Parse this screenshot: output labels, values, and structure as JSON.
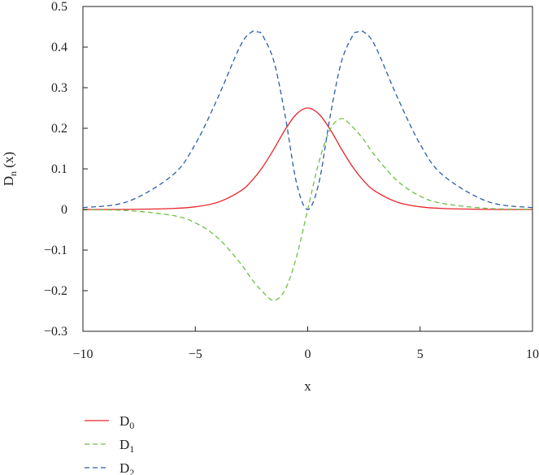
{
  "chart_data": {
    "type": "line",
    "title": "",
    "xlabel": "x",
    "ylabel": {
      "base": "D",
      "sub": "n",
      "rest": " (x)"
    },
    "xlim": [
      -10,
      10
    ],
    "ylim": [
      -0.3,
      0.5
    ],
    "xticks": [
      -10,
      -5,
      0,
      5,
      10
    ],
    "xtick_labels": [
      "−10",
      "−5",
      "0",
      "5",
      "10"
    ],
    "yticks": [
      -0.3,
      -0.2,
      -0.1,
      0,
      0.1,
      0.2,
      0.3,
      0.4,
      0.5
    ],
    "ytick_labels": [
      "−0.3",
      "−0.2",
      "−0.1",
      "0",
      "0.1",
      "0.2",
      "0.3",
      "0.4",
      "0.5"
    ],
    "grid": false,
    "legend_position": "below-left",
    "series": [
      {
        "name": "D0",
        "base": "D",
        "sub": "0",
        "color": "#e8262b",
        "dash": "solid",
        "x": [
          -10,
          -8,
          -6,
          -5,
          -4,
          -3,
          -2.5,
          -2,
          -1.5,
          -1,
          -0.5,
          0,
          0.5,
          1,
          1.5,
          2,
          2.5,
          3,
          4,
          5,
          6,
          8,
          10
        ],
        "y": [
          0.0,
          0.0003,
          0.0025,
          0.0066,
          0.0177,
          0.0452,
          0.0701,
          0.105,
          0.149,
          0.197,
          0.235,
          0.25,
          0.235,
          0.197,
          0.149,
          0.105,
          0.0701,
          0.0452,
          0.0177,
          0.0066,
          0.0025,
          0.0003,
          0.0
        ]
      },
      {
        "name": "D1",
        "base": "D",
        "sub": "1",
        "color": "#6cbf45",
        "dash": "dashed",
        "x": [
          -10,
          -8,
          -6,
          -5,
          -4,
          -3,
          -2.5,
          -2,
          -1.5,
          -1,
          -0.5,
          0,
          0.5,
          1,
          1.5,
          2,
          2.5,
          3,
          4,
          5,
          6,
          8,
          10
        ],
        "y": [
          -0.0005,
          -0.0027,
          -0.0148,
          -0.0329,
          -0.0699,
          -0.132,
          -0.171,
          -0.203,
          -0.224,
          -0.197,
          -0.117,
          0,
          0.117,
          0.197,
          0.224,
          0.203,
          0.171,
          0.132,
          0.0699,
          0.0329,
          0.0148,
          0.0027,
          0.0005
        ]
      },
      {
        "name": "D2",
        "base": "D",
        "sub": "2",
        "color": "#2b5ca8",
        "dash": "dashed",
        "x": [
          -10,
          -8,
          -6,
          -5,
          -4,
          -3,
          -2.5,
          -2.2,
          -2,
          -1.5,
          -1,
          -0.5,
          0,
          0.5,
          1,
          1.5,
          2,
          2.2,
          2.5,
          3,
          4,
          5,
          6,
          8,
          10
        ],
        "y": [
          0.0045,
          0.0196,
          0.0853,
          0.161,
          0.275,
          0.403,
          0.437,
          0.437,
          0.428,
          0.364,
          0.23,
          0.066,
          0,
          0.066,
          0.23,
          0.364,
          0.428,
          0.437,
          0.437,
          0.403,
          0.275,
          0.161,
          0.0853,
          0.0196,
          0.0045
        ]
      }
    ]
  }
}
